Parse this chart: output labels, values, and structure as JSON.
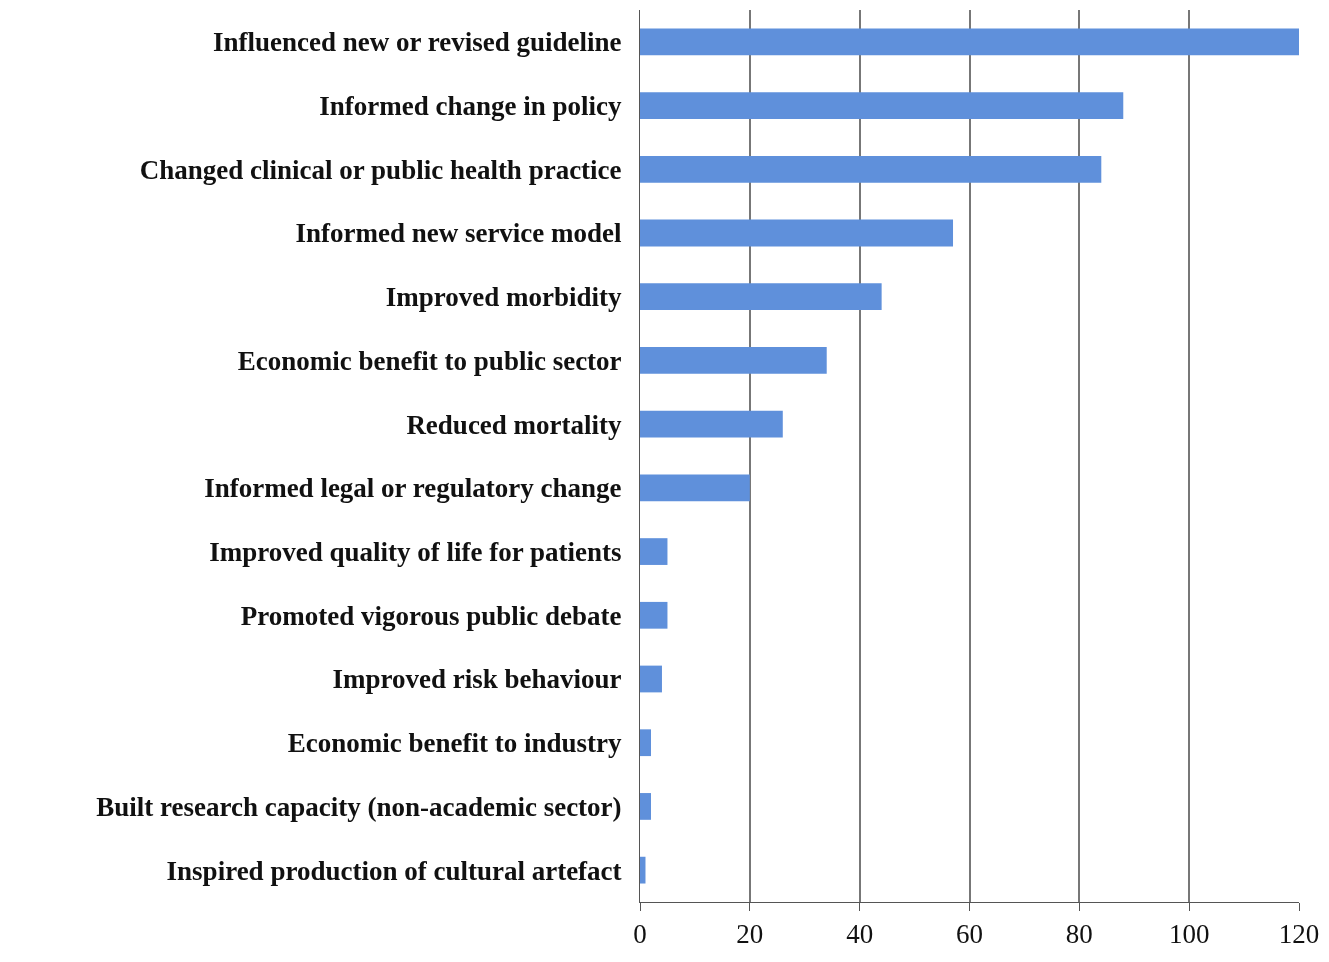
{
  "chart_data": {
    "type": "bar",
    "orientation": "horizontal",
    "categories": [
      "Influenced new or revised guideline",
      "Informed change in policy",
      "Changed clinical or public health practice",
      "Informed new service model",
      "Improved morbidity",
      "Economic benefit to public sector",
      "Reduced mortality",
      "Informed legal or regulatory change",
      "Improved quality of life for patients",
      "Promoted vigorous public debate",
      "Improved risk behaviour",
      "Economic benefit to industry",
      "Built research capacity (non-academic sector)",
      "Inspired production of cultural artefact"
    ],
    "values": [
      120,
      88,
      84,
      57,
      44,
      34,
      26,
      20,
      5,
      5,
      4,
      2,
      2,
      1
    ],
    "color": "#5f90db",
    "xlim": [
      0,
      120
    ],
    "xticks": [
      0,
      20,
      40,
      60,
      80,
      100,
      120
    ],
    "grid": "x",
    "legend": false
  }
}
